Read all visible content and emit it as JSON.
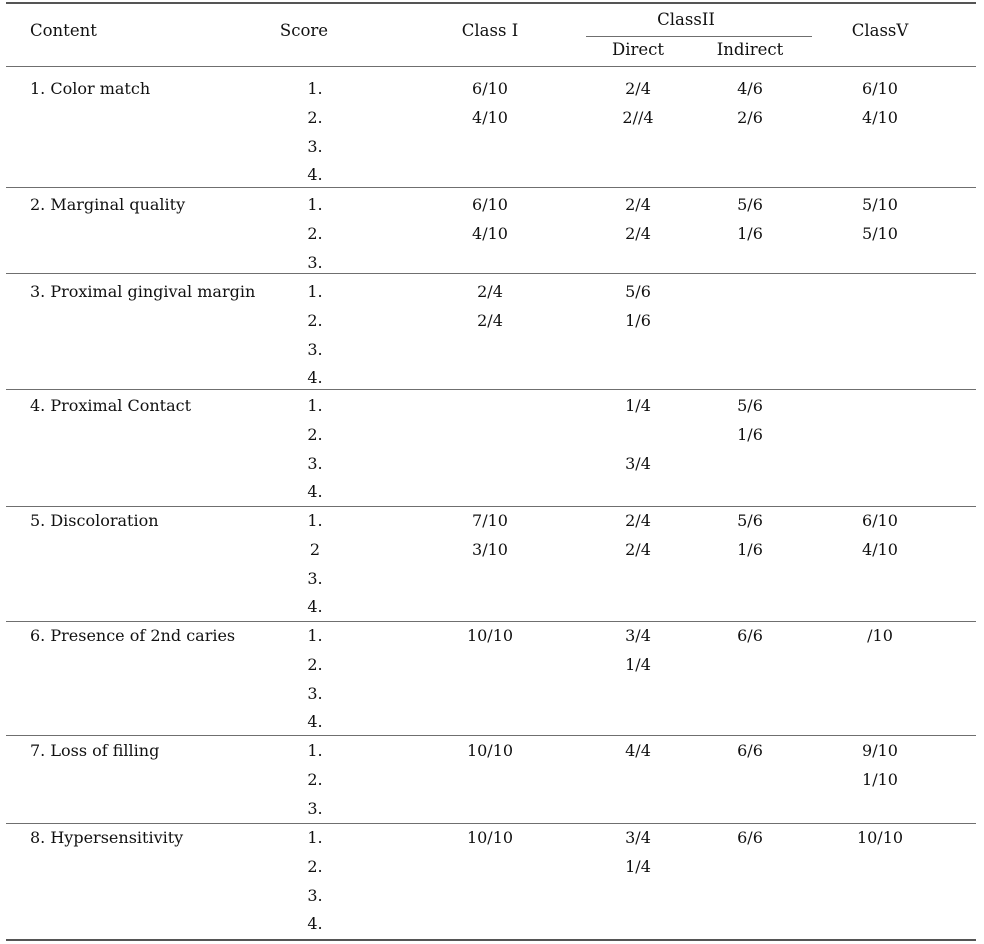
{
  "header": {
    "content": "Content",
    "score": "Score",
    "class1": "Class I",
    "class2": "ClassII",
    "direct": "Direct",
    "indirect": "Indirect",
    "class5": "ClassV"
  },
  "groups": [
    {
      "label": "1. Color match",
      "rows": [
        {
          "score": "1.",
          "c1": "6/10",
          "dir": "2/4",
          "ind": "4/6",
          "c5": "6/10"
        },
        {
          "score": "2.",
          "c1": "4/10",
          "dir": "2//4",
          "ind": "2/6",
          "c5": "4/10"
        },
        {
          "score": "3.",
          "c1": "",
          "dir": "",
          "ind": "",
          "c5": ""
        },
        {
          "score": "4.",
          "c1": "",
          "dir": "",
          "ind": "",
          "c5": ""
        }
      ]
    },
    {
      "label": "2. Marginal quality",
      "rows": [
        {
          "score": "1.",
          "c1": "6/10",
          "dir": "2/4",
          "ind": "5/6",
          "c5": "5/10"
        },
        {
          "score": "2.",
          "c1": "4/10",
          "dir": "2/4",
          "ind": "1/6",
          "c5": "5/10"
        },
        {
          "score": "3.",
          "c1": "",
          "dir": "",
          "ind": "",
          "c5": ""
        }
      ]
    },
    {
      "label": "3. Proximal gingival margin",
      "rows": [
        {
          "score": "1.",
          "c1": "2/4",
          "dir": "5/6",
          "ind": "",
          "c5": ""
        },
        {
          "score": "2.",
          "c1": "2/4",
          "dir": "1/6",
          "ind": "",
          "c5": ""
        },
        {
          "score": "3.",
          "c1": "",
          "dir": "",
          "ind": "",
          "c5": ""
        },
        {
          "score": "4.",
          "c1": "",
          "dir": "",
          "ind": "",
          "c5": ""
        }
      ]
    },
    {
      "label": "4. Proximal Contact",
      "rows": [
        {
          "score": "1.",
          "c1": "",
          "dir": "1/4",
          "ind": "5/6",
          "c5": ""
        },
        {
          "score": "2.",
          "c1": "",
          "dir": "",
          "ind": "1/6",
          "c5": ""
        },
        {
          "score": "3.",
          "c1": "",
          "dir": "3/4",
          "ind": "",
          "c5": ""
        },
        {
          "score": "4.",
          "c1": "",
          "dir": "",
          "ind": "",
          "c5": ""
        }
      ]
    },
    {
      "label": "5. Discoloration",
      "rows": [
        {
          "score": "1.",
          "c1": "7/10",
          "dir": "2/4",
          "ind": "5/6",
          "c5": "6/10"
        },
        {
          "score": "2",
          "c1": "3/10",
          "dir": "2/4",
          "ind": "1/6",
          "c5": "4/10"
        },
        {
          "score": "3.",
          "c1": "",
          "dir": "",
          "ind": "",
          "c5": ""
        },
        {
          "score": "4.",
          "c1": "",
          "dir": "",
          "ind": "",
          "c5": ""
        }
      ]
    },
    {
      "label": "6. Presence of 2nd caries",
      "rows": [
        {
          "score": "1.",
          "c1": "10/10",
          "dir": "3/4",
          "ind": "6/6",
          "c5": "/10"
        },
        {
          "score": "2.",
          "c1": "",
          "dir": "1/4",
          "ind": "",
          "c5": ""
        },
        {
          "score": "3.",
          "c1": "",
          "dir": "",
          "ind": "",
          "c5": ""
        },
        {
          "score": "4.",
          "c1": "",
          "dir": "",
          "ind": "",
          "c5": ""
        }
      ]
    },
    {
      "label": "7. Loss of filling",
      "rows": [
        {
          "score": "1.",
          "c1": "10/10",
          "dir": "4/4",
          "ind": "6/6",
          "c5": "9/10"
        },
        {
          "score": "2.",
          "c1": "",
          "dir": "",
          "ind": "",
          "c5": "1/10"
        },
        {
          "score": "3.",
          "c1": "",
          "dir": "",
          "ind": "",
          "c5": ""
        }
      ]
    },
    {
      "label": "8. Hypersensitivity",
      "rows": [
        {
          "score": "1.",
          "c1": "10/10",
          "dir": "3/4",
          "ind": "6/6",
          "c5": "10/10"
        },
        {
          "score": "2.",
          "c1": "",
          "dir": "1/4",
          "ind": "",
          "c5": ""
        },
        {
          "score": "3.",
          "c1": "",
          "dir": "",
          "ind": "",
          "c5": ""
        },
        {
          "score": "4.",
          "c1": "",
          "dir": "",
          "ind": "",
          "c5": ""
        }
      ]
    }
  ]
}
